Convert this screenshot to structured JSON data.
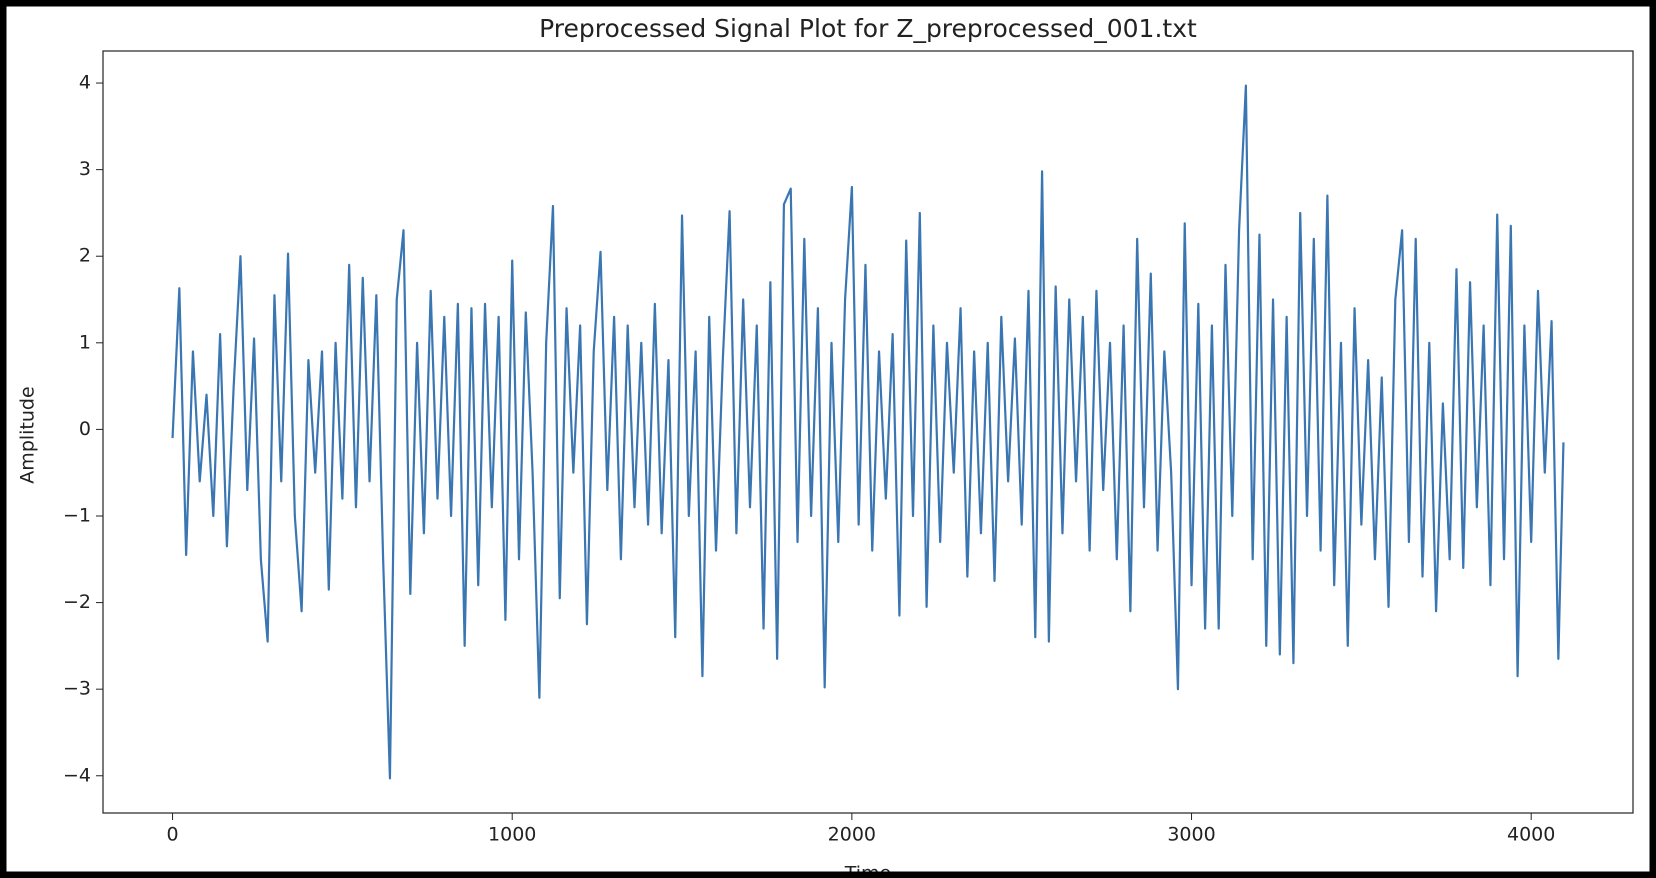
{
  "chart_data": {
    "type": "line",
    "title": "Preprocessed Signal Plot for Z_preprocessed_001.txt",
    "xlabel": "Time",
    "ylabel": "Amplitude",
    "x": [
      0,
      20,
      40,
      60,
      80,
      100,
      120,
      140,
      160,
      180,
      200,
      220,
      240,
      260,
      280,
      300,
      320,
      340,
      360,
      380,
      400,
      420,
      440,
      460,
      480,
      500,
      520,
      540,
      560,
      580,
      600,
      620,
      640,
      660,
      680,
      700,
      720,
      740,
      760,
      780,
      800,
      820,
      840,
      860,
      880,
      900,
      920,
      940,
      960,
      980,
      1000,
      1020,
      1040,
      1060,
      1080,
      1100,
      1120,
      1140,
      1160,
      1180,
      1200,
      1220,
      1240,
      1260,
      1280,
      1300,
      1320,
      1340,
      1360,
      1380,
      1400,
      1420,
      1440,
      1460,
      1480,
      1500,
      1520,
      1540,
      1560,
      1580,
      1600,
      1620,
      1640,
      1660,
      1680,
      1700,
      1720,
      1740,
      1760,
      1780,
      1800,
      1820,
      1840,
      1860,
      1880,
      1900,
      1920,
      1940,
      1960,
      1980,
      2000,
      2020,
      2040,
      2060,
      2080,
      2100,
      2120,
      2140,
      2160,
      2180,
      2200,
      2220,
      2240,
      2260,
      2280,
      2300,
      2320,
      2340,
      2360,
      2380,
      2400,
      2420,
      2440,
      2460,
      2480,
      2500,
      2520,
      2540,
      2560,
      2580,
      2600,
      2620,
      2640,
      2660,
      2680,
      2700,
      2720,
      2740,
      2760,
      2780,
      2800,
      2820,
      2840,
      2860,
      2880,
      2900,
      2920,
      2940,
      2960,
      2980,
      3000,
      3020,
      3040,
      3060,
      3080,
      3100,
      3120,
      3140,
      3160,
      3180,
      3200,
      3220,
      3240,
      3260,
      3280,
      3300,
      3320,
      3340,
      3360,
      3380,
      3400,
      3420,
      3440,
      3460,
      3480,
      3500,
      3520,
      3540,
      3560,
      3580,
      3600,
      3620,
      3640,
      3660,
      3680,
      3700,
      3720,
      3740,
      3760,
      3780,
      3800,
      3820,
      3840,
      3860,
      3880,
      3900,
      3920,
      3940,
      3960,
      3980,
      4000,
      4020,
      4040,
      4060,
      4080,
      4095
    ],
    "series": [
      {
        "name": "Amplitude",
        "color": "#3a76b2",
        "values": [
          -0.1,
          1.63,
          -1.45,
          0.9,
          -0.6,
          0.4,
          -1.0,
          1.1,
          -1.35,
          0.5,
          2.0,
          -0.7,
          1.05,
          -1.5,
          -2.45,
          1.55,
          -0.6,
          2.03,
          -1.0,
          -2.1,
          0.8,
          -0.5,
          0.9,
          -1.85,
          1.0,
          -0.8,
          1.9,
          -0.9,
          1.75,
          -0.6,
          1.55,
          -1.5,
          -4.03,
          1.5,
          2.3,
          -1.9,
          1.0,
          -1.2,
          1.6,
          -0.8,
          1.3,
          -1.0,
          1.45,
          -2.5,
          1.4,
          -1.8,
          1.45,
          -0.9,
          1.3,
          -2.2,
          1.95,
          -1.5,
          1.35,
          -0.5,
          -3.1,
          1.0,
          2.58,
          -1.95,
          1.4,
          -0.5,
          1.2,
          -2.25,
          0.9,
          2.05,
          -0.7,
          1.3,
          -1.5,
          1.2,
          -0.9,
          1.0,
          -1.1,
          1.45,
          -1.2,
          0.8,
          -2.4,
          2.47,
          -1.0,
          0.9,
          -2.85,
          1.3,
          -1.4,
          0.8,
          2.52,
          -1.2,
          1.5,
          -0.9,
          1.2,
          -2.3,
          1.7,
          -2.65,
          2.6,
          2.78,
          -1.3,
          2.2,
          -1.0,
          1.4,
          -2.98,
          1.0,
          -1.3,
          1.5,
          2.8,
          -1.1,
          1.9,
          -1.4,
          0.9,
          -0.8,
          1.1,
          -2.15,
          2.18,
          -1.0,
          2.5,
          -2.05,
          1.2,
          -1.3,
          1.0,
          -0.5,
          1.4,
          -1.7,
          0.9,
          -1.2,
          1.0,
          -1.75,
          1.3,
          -0.6,
          1.05,
          -1.1,
          1.6,
          -2.4,
          2.98,
          -2.45,
          1.65,
          -1.2,
          1.5,
          -0.6,
          1.3,
          -1.4,
          1.6,
          -0.7,
          1.0,
          -1.5,
          1.2,
          -2.1,
          2.2,
          -0.9,
          1.8,
          -1.4,
          0.9,
          -0.5,
          -3.0,
          2.38,
          -1.8,
          1.45,
          -2.3,
          1.2,
          -2.3,
          1.9,
          -1.0,
          2.3,
          3.97,
          -1.5,
          2.25,
          -2.5,
          1.5,
          -2.6,
          1.3,
          -2.7,
          2.5,
          -1.0,
          2.2,
          -1.4,
          2.7,
          -1.8,
          1.0,
          -2.5,
          1.4,
          -1.1,
          0.8,
          -1.5,
          0.6,
          -2.05,
          1.5,
          2.3,
          -1.3,
          2.2,
          -1.7,
          1.0,
          -2.1,
          0.3,
          -1.5,
          1.85,
          -1.6,
          1.7,
          -0.9,
          1.2,
          -1.8,
          2.48,
          -1.5,
          2.35,
          -2.85,
          1.2,
          -1.3,
          1.6,
          -0.5,
          1.25,
          -2.65,
          -0.15
        ]
      }
    ],
    "xlim": [
      -204.75,
      4299.75
    ],
    "xticks": [
      0,
      1000,
      2000,
      3000,
      4000
    ],
    "ylim": [
      -4.43,
      4.37
    ],
    "yticks": [
      {
        "value": -4,
        "label": "−4"
      },
      {
        "value": -3,
        "label": "−3"
      },
      {
        "value": -2,
        "label": "−2"
      },
      {
        "value": -1,
        "label": "−1"
      },
      0,
      1,
      2,
      3,
      4
    ],
    "grid": false
  }
}
